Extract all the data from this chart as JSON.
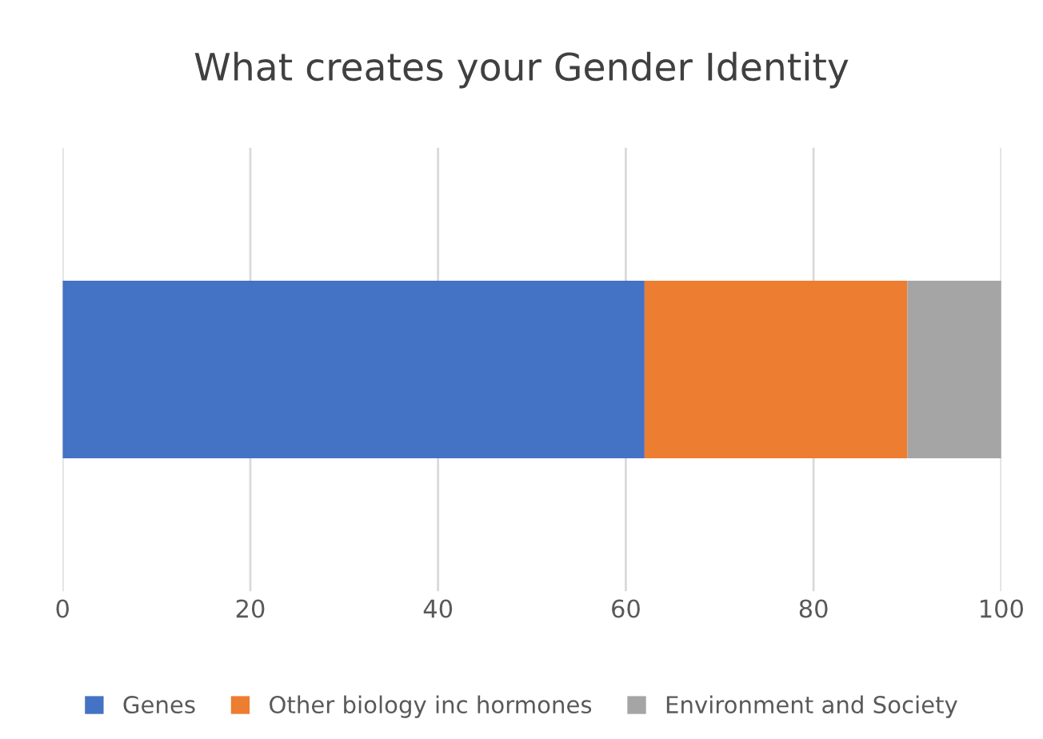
{
  "chart_data": {
    "type": "bar",
    "title": "What creates your Gender Identity",
    "orientation": "horizontal",
    "stacked": true,
    "categories": [
      null
    ],
    "series": [
      {
        "name": "Genes",
        "color": "#4472c4",
        "values": [
          62
        ]
      },
      {
        "name": "Other biology inc hormones",
        "color": "#ed7d31",
        "values": [
          28
        ]
      },
      {
        "name": "Environment and Society",
        "color": "#a5a5a5",
        "values": [
          10
        ]
      }
    ],
    "xlim": [
      0,
      100
    ],
    "xticks": [
      0,
      20,
      40,
      60,
      80,
      100
    ],
    "grid": "x",
    "legend": "bottom"
  }
}
